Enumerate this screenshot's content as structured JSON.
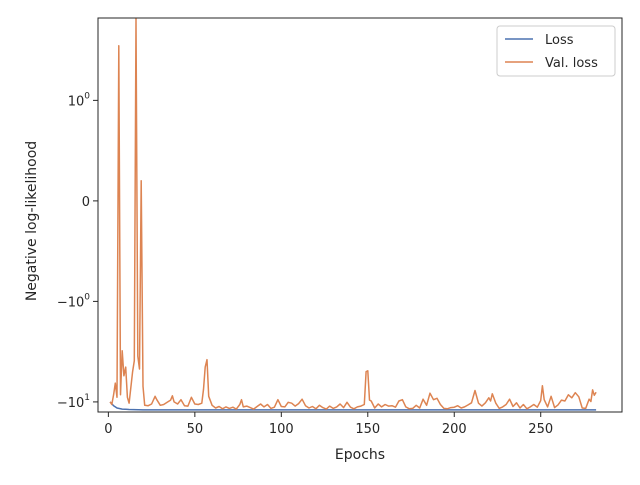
{
  "chart_data": {
    "type": "line",
    "title": "",
    "xlabel": "Epochs",
    "ylabel": "Negative log-likelihood",
    "xlim": [
      -6,
      297
    ],
    "x_ticks": [
      0,
      50,
      100,
      150,
      200,
      250
    ],
    "x_tick_labels": [
      "0",
      "50",
      "100",
      "150",
      "200",
      "250"
    ],
    "y_scale": "symlog",
    "y_ticks": [
      1,
      0,
      -1,
      -10
    ],
    "y_tick_labels": [
      {
        "base": "10",
        "exp": "0",
        "sign": ""
      },
      {
        "base": "0",
        "exp": "",
        "sign": ""
      },
      {
        "base": "10",
        "exp": "0",
        "sign": "−"
      },
      {
        "base": "10",
        "exp": "1",
        "sign": "−"
      }
    ],
    "legend_position": "top-right",
    "grid": false,
    "series": [
      {
        "name": "Loss",
        "color": "#4c72b0",
        "points": [
          [
            1,
            -10.0
          ],
          [
            3,
            -10.9
          ],
          [
            5,
            -11.5
          ],
          [
            8,
            -11.8
          ],
          [
            12,
            -11.9
          ],
          [
            20,
            -12.0
          ],
          [
            50,
            -12.0
          ],
          [
            100,
            -12.0
          ],
          [
            150,
            -12.0
          ],
          [
            200,
            -12.0
          ],
          [
            250,
            -12.0
          ],
          [
            282,
            -12.0
          ]
        ]
      },
      {
        "name": "Val. loss",
        "color": "#dd8452",
        "points": [
          [
            1,
            -10.0
          ],
          [
            2,
            -10.6
          ],
          [
            3,
            -8.5
          ],
          [
            4,
            -6.5
          ],
          [
            5,
            -9.0
          ],
          [
            6,
            3.5
          ],
          [
            7,
            -8.5
          ],
          [
            8,
            -3.1
          ],
          [
            9,
            -5.5
          ],
          [
            10,
            -4.5
          ],
          [
            11,
            -9.0
          ],
          [
            12,
            -10.3
          ],
          [
            14,
            -5.0
          ],
          [
            15,
            -3.9
          ],
          [
            16,
            6.5
          ],
          [
            17,
            -3.5
          ],
          [
            18,
            -4.7
          ],
          [
            19,
            0.2
          ],
          [
            20,
            -7.0
          ],
          [
            21,
            -10.8
          ],
          [
            23,
            -10.9
          ],
          [
            25,
            -10.5
          ],
          [
            27,
            -8.8
          ],
          [
            28,
            -9.5
          ],
          [
            30,
            -10.8
          ],
          [
            32,
            -10.6
          ],
          [
            34,
            -10.1
          ],
          [
            36,
            -9.6
          ],
          [
            37,
            -8.7
          ],
          [
            38,
            -10.0
          ],
          [
            40,
            -10.5
          ],
          [
            42,
            -9.5
          ],
          [
            44,
            -10.9
          ],
          [
            46,
            -11.0
          ],
          [
            48,
            -9.0
          ],
          [
            50,
            -10.5
          ],
          [
            52,
            -10.6
          ],
          [
            54,
            -10.3
          ],
          [
            55,
            -7.5
          ],
          [
            56,
            -4.5
          ],
          [
            57,
            -3.8
          ],
          [
            58,
            -8.8
          ],
          [
            60,
            -10.8
          ],
          [
            62,
            -11.5
          ],
          [
            64,
            -11.1
          ],
          [
            66,
            -11.7
          ],
          [
            68,
            -11.2
          ],
          [
            70,
            -11.6
          ],
          [
            72,
            -11.3
          ],
          [
            74,
            -11.8
          ],
          [
            76,
            -10.6
          ],
          [
            77,
            -9.5
          ],
          [
            78,
            -11.2
          ],
          [
            80,
            -11.0
          ],
          [
            82,
            -11.4
          ],
          [
            84,
            -11.8
          ],
          [
            86,
            -11.1
          ],
          [
            88,
            -10.5
          ],
          [
            90,
            -11.2
          ],
          [
            92,
            -10.6
          ],
          [
            94,
            -11.6
          ],
          [
            96,
            -11.3
          ],
          [
            98,
            -9.5
          ],
          [
            100,
            -11.1
          ],
          [
            102,
            -11.2
          ],
          [
            104,
            -10.1
          ],
          [
            106,
            -10.3
          ],
          [
            108,
            -11.0
          ],
          [
            110,
            -10.4
          ],
          [
            112,
            -9.4
          ],
          [
            114,
            -10.9
          ],
          [
            116,
            -11.5
          ],
          [
            118,
            -11.1
          ],
          [
            120,
            -11.7
          ],
          [
            122,
            -10.8
          ],
          [
            124,
            -11.4
          ],
          [
            126,
            -11.8
          ],
          [
            128,
            -11.0
          ],
          [
            130,
            -11.6
          ],
          [
            132,
            -11.2
          ],
          [
            134,
            -10.5
          ],
          [
            136,
            -11.4
          ],
          [
            138,
            -10.1
          ],
          [
            140,
            -11.3
          ],
          [
            142,
            -11.7
          ],
          [
            144,
            -11.2
          ],
          [
            146,
            -11.0
          ],
          [
            148,
            -10.6
          ],
          [
            149,
            -5.0
          ],
          [
            150,
            -4.9
          ],
          [
            151,
            -9.6
          ],
          [
            152,
            -9.8
          ],
          [
            154,
            -11.5
          ],
          [
            156,
            -10.5
          ],
          [
            158,
            -11.2
          ],
          [
            160,
            -10.6
          ],
          [
            162,
            -11.0
          ],
          [
            164,
            -10.9
          ],
          [
            166,
            -11.3
          ],
          [
            168,
            -9.8
          ],
          [
            170,
            -9.5
          ],
          [
            172,
            -11.2
          ],
          [
            174,
            -11.7
          ],
          [
            176,
            -11.6
          ],
          [
            178,
            -10.8
          ],
          [
            180,
            -11.5
          ],
          [
            182,
            -9.4
          ],
          [
            184,
            -10.8
          ],
          [
            186,
            -8.2
          ],
          [
            188,
            -9.5
          ],
          [
            190,
            -9.2
          ],
          [
            192,
            -10.6
          ],
          [
            194,
            -11.6
          ],
          [
            196,
            -11.7
          ],
          [
            198,
            -11.4
          ],
          [
            200,
            -11.3
          ],
          [
            202,
            -10.9
          ],
          [
            204,
            -11.5
          ],
          [
            206,
            -11.2
          ],
          [
            208,
            -10.7
          ],
          [
            210,
            -10.2
          ],
          [
            212,
            -7.7
          ],
          [
            214,
            -10.3
          ],
          [
            216,
            -11.0
          ],
          [
            218,
            -10.2
          ],
          [
            220,
            -9.1
          ],
          [
            221,
            -9.8
          ],
          [
            222,
            -8.3
          ],
          [
            224,
            -10.3
          ],
          [
            226,
            -11.6
          ],
          [
            228,
            -11.2
          ],
          [
            230,
            -10.6
          ],
          [
            232,
            -9.4
          ],
          [
            234,
            -11.1
          ],
          [
            236,
            -10.2
          ],
          [
            238,
            -11.5
          ],
          [
            240,
            -10.6
          ],
          [
            242,
            -11.7
          ],
          [
            244,
            -11.2
          ],
          [
            246,
            -10.6
          ],
          [
            248,
            -11.3
          ],
          [
            250,
            -9.7
          ],
          [
            251,
            -6.9
          ],
          [
            252,
            -9.5
          ],
          [
            254,
            -11.2
          ],
          [
            256,
            -8.8
          ],
          [
            258,
            -11.4
          ],
          [
            260,
            -10.7
          ],
          [
            262,
            -9.6
          ],
          [
            264,
            -9.8
          ],
          [
            266,
            -8.5
          ],
          [
            268,
            -9.1
          ],
          [
            270,
            -8.1
          ],
          [
            272,
            -8.9
          ],
          [
            274,
            -11.5
          ],
          [
            276,
            -11.6
          ],
          [
            278,
            -9.4
          ],
          [
            279,
            -9.9
          ],
          [
            280,
            -7.6
          ],
          [
            281,
            -8.6
          ],
          [
            282,
            -8.0
          ]
        ]
      }
    ]
  }
}
